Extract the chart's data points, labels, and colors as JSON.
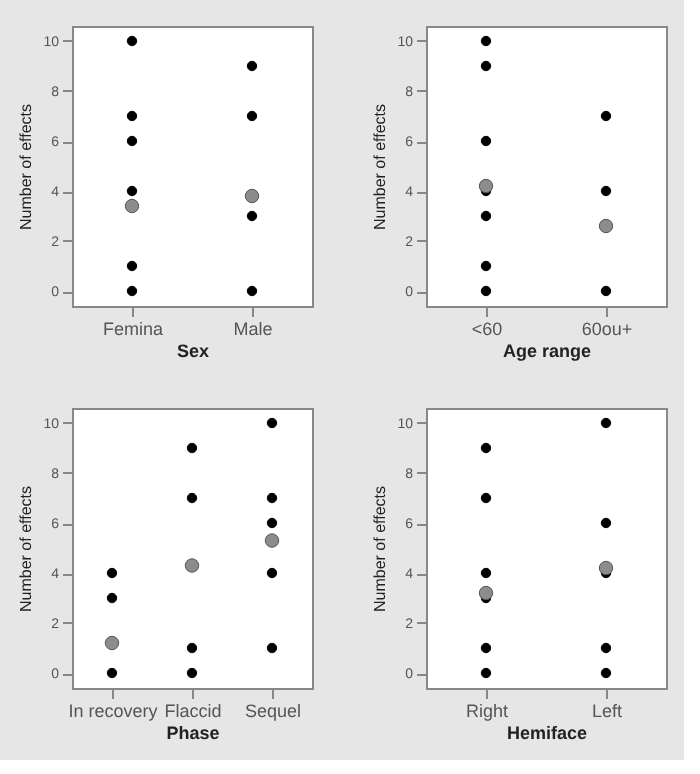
{
  "chart_data": [
    {
      "type": "scatter",
      "xlabel": "Sex",
      "ylabel": "Number of effects",
      "categories": [
        "Femina",
        "Male"
      ],
      "ylim": [
        -0.6,
        10.6
      ],
      "yticks": [
        0,
        2,
        4,
        6,
        8,
        10
      ],
      "grid": false,
      "marker": "circle",
      "series": [
        {
          "color": "#000000",
          "x": [
            "Femina",
            "Femina",
            "Femina",
            "Femina",
            "Femina",
            "Femina",
            "Male",
            "Male",
            "Male",
            "Male"
          ],
          "values": [
            10,
            7,
            6,
            4,
            1,
            0,
            9,
            7,
            3,
            0
          ]
        },
        {
          "color": "#8c8c8c",
          "x": [
            "Femina",
            "Male"
          ],
          "values": [
            3.4,
            3.8
          ]
        }
      ]
    },
    {
      "type": "scatter",
      "xlabel": "Age range",
      "ylabel": "Number of effects",
      "categories": [
        "<60",
        "60ou+"
      ],
      "ylim": [
        -0.6,
        10.6
      ],
      "yticks": [
        0,
        2,
        4,
        6,
        8,
        10
      ],
      "grid": false,
      "marker": "circle",
      "series": [
        {
          "color": "#000000",
          "x": [
            "<60",
            "<60",
            "<60",
            "<60",
            "<60",
            "<60",
            "<60",
            "60ou+",
            "60ou+",
            "60ou+"
          ],
          "values": [
            10,
            9,
            6,
            4,
            3,
            1,
            0,
            7,
            4,
            0
          ]
        },
        {
          "color": "#8c8c8c",
          "x": [
            "<60",
            "60ou+"
          ],
          "values": [
            4.2,
            2.6
          ]
        }
      ]
    },
    {
      "type": "scatter",
      "xlabel": "Phase",
      "ylabel": "Number of effects",
      "categories": [
        "In recovery",
        "Flaccid",
        "Sequel"
      ],
      "ylim": [
        -0.6,
        10.6
      ],
      "yticks": [
        0,
        2,
        4,
        6,
        8,
        10
      ],
      "grid": false,
      "marker": "circle",
      "series": [
        {
          "color": "#000000",
          "x": [
            "In recovery",
            "In recovery",
            "In recovery",
            "Flaccid",
            "Flaccid",
            "Flaccid",
            "Flaccid",
            "Sequel",
            "Sequel",
            "Sequel",
            "Sequel",
            "Sequel"
          ],
          "values": [
            4,
            3,
            0,
            9,
            7,
            1,
            0,
            10,
            7,
            6,
            4,
            1
          ]
        },
        {
          "color": "#8c8c8c",
          "x": [
            "In recovery",
            "Flaccid",
            "Sequel"
          ],
          "values": [
            1.2,
            4.3,
            5.3
          ]
        }
      ]
    },
    {
      "type": "scatter",
      "xlabel": "Hemiface",
      "ylabel": "Number of effects",
      "categories": [
        "Right",
        "Left"
      ],
      "ylim": [
        -0.6,
        10.6
      ],
      "yticks": [
        0,
        2,
        4,
        6,
        8,
        10
      ],
      "grid": false,
      "marker": "circle",
      "series": [
        {
          "color": "#000000",
          "x": [
            "Right",
            "Right",
            "Right",
            "Right",
            "Right",
            "Right",
            "Left",
            "Left",
            "Left",
            "Left",
            "Left"
          ],
          "values": [
            9,
            7,
            4,
            3,
            1,
            0,
            10,
            6,
            4,
            1,
            0
          ]
        },
        {
          "color": "#8c8c8c",
          "x": [
            "Right",
            "Left"
          ],
          "values": [
            3.2,
            4.2
          ]
        }
      ]
    }
  ]
}
